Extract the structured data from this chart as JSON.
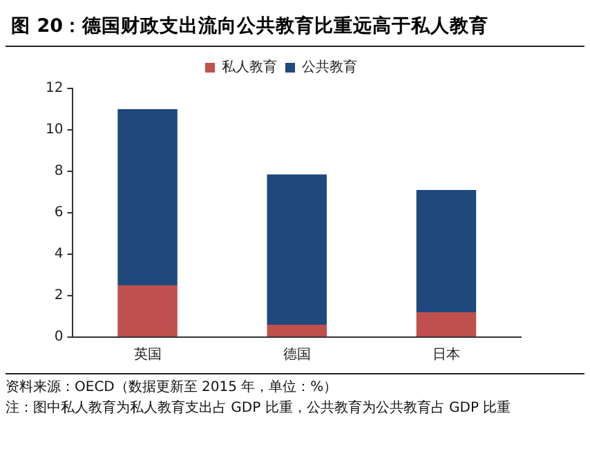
{
  "chart_data": {
    "type": "bar",
    "title": "图 20：德国财政支出流向公共教育比重远高于私人教育",
    "categories": [
      "英国",
      "德国",
      "日本"
    ],
    "series": [
      {
        "name": "私人教育",
        "color": "#c0504d",
        "values": [
          2.5,
          0.6,
          1.2
        ]
      },
      {
        "name": "公共教育",
        "color": "#1f497d",
        "values": [
          8.5,
          7.25,
          5.9
        ]
      }
    ],
    "stacked": true,
    "ylim": [
      0,
      12
    ],
    "yticks": [
      0,
      2,
      4,
      6,
      8,
      10,
      12
    ],
    "grid": false,
    "legend": "top",
    "annotations": [
      "资料来源：OECD（数据更新至 2015 年，单位：%）",
      "注：图中私人教育为私人教育支出占 GDP 比重，公共教育为公共教育占 GDP 比重"
    ]
  }
}
